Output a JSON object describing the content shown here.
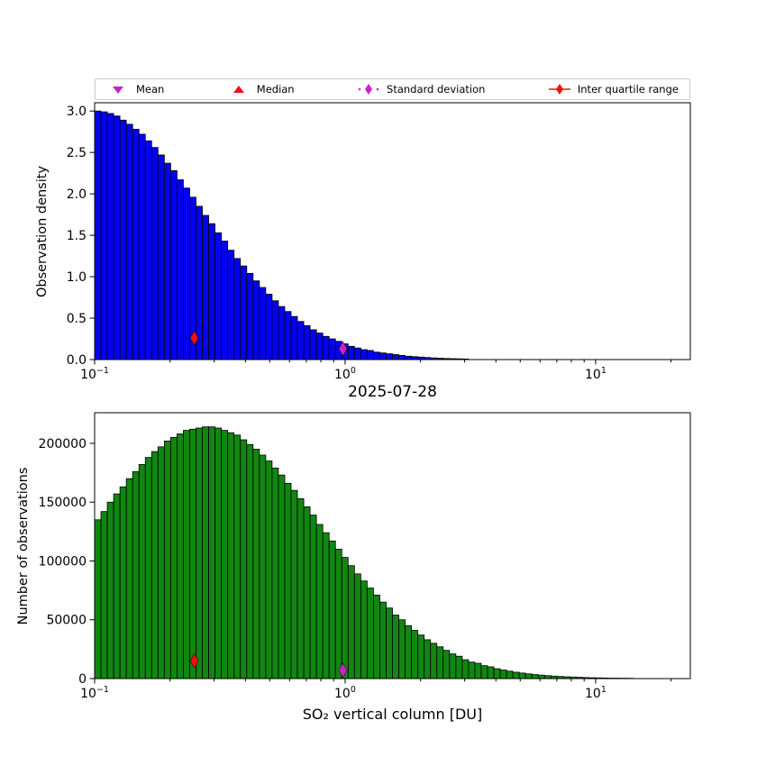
{
  "title": "2025-07-28",
  "legend": {
    "items": [
      {
        "label": "Mean",
        "marker": "triangle-down",
        "color": "#cc22cc"
      },
      {
        "label": "Median",
        "marker": "triangle-up",
        "color": "#ee1111"
      },
      {
        "label": "Standard deviation",
        "marker": "thin-diamond-dotted-line",
        "color": "#cc22cc"
      },
      {
        "label": "Inter quartile range",
        "marker": "thin-diamond-solid-line",
        "color": "#ee1111"
      }
    ]
  },
  "chart_data": [
    {
      "type": "bar",
      "name": "observation-density",
      "title": "",
      "xlabel": "2025-07-28",
      "ylabel": "Observation density",
      "x_scale": "log",
      "log_xlim": [
        -1,
        1.378
      ],
      "ylim": [
        0,
        3.1
      ],
      "grid": false,
      "bar_color": "#0202f0",
      "bar_edge_color": "#000000",
      "log_bin_start": -1,
      "log_bin_step": 0.0253,
      "values": [
        3.0,
        2.99,
        2.97,
        2.94,
        2.89,
        2.84,
        2.78,
        2.72,
        2.64,
        2.56,
        2.47,
        2.37,
        2.28,
        2.17,
        2.07,
        1.96,
        1.85,
        1.74,
        1.64,
        1.53,
        1.43,
        1.32,
        1.22,
        1.13,
        1.04,
        0.95,
        0.87,
        0.79,
        0.71,
        0.64,
        0.58,
        0.52,
        0.46,
        0.41,
        0.36,
        0.32,
        0.28,
        0.25,
        0.22,
        0.19,
        0.16,
        0.14,
        0.12,
        0.11,
        0.09,
        0.08,
        0.07,
        0.06,
        0.05,
        0.04,
        0.035,
        0.03,
        0.025,
        0.02,
        0.016,
        0.013,
        0.011,
        0.009,
        0.007,
        0,
        0,
        0,
        0,
        0,
        0,
        0,
        0,
        0,
        0,
        0,
        0,
        0,
        0,
        0,
        0,
        0,
        0,
        0,
        0,
        0,
        0,
        0,
        0,
        0,
        0,
        0,
        0,
        0,
        0,
        0,
        0,
        0,
        0,
        0
      ],
      "x_ticks": [
        {
          "log": -1,
          "base": "10",
          "exp": "−1"
        },
        {
          "log": 0,
          "base": "10",
          "exp": "0"
        },
        {
          "log": 1,
          "base": "10",
          "exp": "1"
        }
      ],
      "y_ticks": [
        {
          "v": 0.0,
          "label": "0.0"
        },
        {
          "v": 0.5,
          "label": "0.5"
        },
        {
          "v": 1.0,
          "label": "1.0"
        },
        {
          "v": 1.5,
          "label": "1.5"
        },
        {
          "v": 2.0,
          "label": "2.0"
        },
        {
          "v": 2.5,
          "label": "2.5"
        },
        {
          "v": 3.0,
          "label": "3.0"
        }
      ],
      "markers": [
        {
          "name": "interquartile-range",
          "x": 0.25,
          "y": 0.26,
          "color": "#ee1111"
        },
        {
          "name": "standard-deviation",
          "x": 0.98,
          "y": 0.13,
          "color": "#cc22cc"
        }
      ]
    },
    {
      "type": "bar",
      "name": "number-of-observations",
      "title": "",
      "xlabel": "SO₂ vertical column [DU]",
      "ylabel": "Number of observations",
      "x_scale": "log",
      "log_xlim": [
        -1,
        1.378
      ],
      "ylim": [
        0,
        226000
      ],
      "grid": false,
      "bar_color": "#118611",
      "bar_edge_color": "#000000",
      "log_bin_start": -1,
      "log_bin_step": 0.0253,
      "values": [
        135000,
        142000,
        150000,
        157000,
        163000,
        170000,
        176000,
        182000,
        188000,
        193000,
        197000,
        202000,
        205000,
        208000,
        211000,
        212000,
        213000,
        214000,
        214000,
        213000,
        211000,
        209000,
        207000,
        203000,
        199000,
        195000,
        190000,
        185000,
        179000,
        173000,
        166000,
        160000,
        153000,
        146000,
        139000,
        131000,
        124000,
        117000,
        110000,
        103000,
        96000,
        89000,
        83000,
        77000,
        71000,
        65000,
        60000,
        54000,
        50000,
        45000,
        41000,
        37000,
        33000,
        30000,
        27000,
        24000,
        21000,
        19000,
        16000,
        14000,
        13000,
        11000,
        10000,
        8400,
        7300,
        6300,
        5400,
        4700,
        4000,
        3400,
        2900,
        2500,
        2100,
        1800,
        1500,
        1300,
        1100,
        900,
        700,
        600,
        500,
        400,
        350,
        300,
        250,
        0,
        0,
        0,
        0,
        0,
        0,
        0,
        0,
        0
      ],
      "x_ticks": [
        {
          "log": -1,
          "base": "10",
          "exp": "−1"
        },
        {
          "log": 0,
          "base": "10",
          "exp": "0"
        },
        {
          "log": 1,
          "base": "10",
          "exp": "1"
        }
      ],
      "y_ticks": [
        {
          "v": 0,
          "label": "0"
        },
        {
          "v": 50000,
          "label": "50000"
        },
        {
          "v": 100000,
          "label": "100000"
        },
        {
          "v": 150000,
          "label": "150000"
        },
        {
          "v": 200000,
          "label": "200000"
        }
      ],
      "markers": [
        {
          "name": "interquartile-range",
          "x": 0.25,
          "y": 15000,
          "color": "#ee1111"
        },
        {
          "name": "standard-deviation",
          "x": 0.98,
          "y": 7000,
          "color": "#cc22cc"
        }
      ]
    }
  ]
}
